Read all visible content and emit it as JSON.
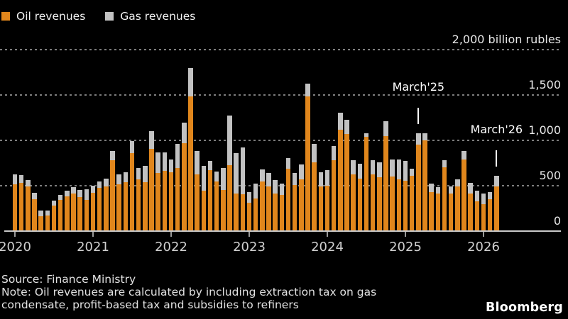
{
  "legend": {
    "items": [
      {
        "label": "Oil revenues",
        "color": "#E0861C"
      },
      {
        "label": "Gas revenues",
        "color": "#C2C2C2"
      }
    ]
  },
  "chart_data": {
    "type": "bar",
    "stacked": true,
    "title": "",
    "unit_top_label": "2,000 billion rubles",
    "x_start_month": "2020-01",
    "x_end_month": "2026-03",
    "ylim": [
      0,
      2000
    ],
    "yticks": [
      {
        "value": 0,
        "label": "0"
      },
      {
        "value": 500,
        "label": "500"
      },
      {
        "value": 1000,
        "label": "1,000"
      },
      {
        "value": 1500,
        "label": "1,500"
      },
      {
        "value": 2000,
        "label": "2,000 billion rubles"
      }
    ],
    "year_labels": [
      {
        "label": "2020",
        "month_index": 0
      },
      {
        "label": "2021",
        "month_index": 12
      },
      {
        "label": "2022",
        "month_index": 24
      },
      {
        "label": "2023",
        "month_index": 36
      },
      {
        "label": "2024",
        "month_index": 48
      },
      {
        "label": "2025",
        "month_index": 60
      },
      {
        "label": "2026",
        "month_index": 72
      }
    ],
    "series": [
      {
        "name": "Oil revenues",
        "color": "#E0861C",
        "values": [
          516,
          531,
          492,
          352,
          164,
          172,
          281,
          344,
          383,
          414,
          375,
          344,
          422,
          477,
          492,
          781,
          516,
          539,
          859,
          570,
          539,
          906,
          640,
          664,
          648,
          695,
          971,
          1484,
          625,
          443,
          672,
          547,
          451,
          729,
          417,
          404,
          313,
          359,
          547,
          492,
          414,
          398,
          688,
          508,
          570,
          1484,
          758,
          492,
          500,
          781,
          1117,
          1070,
          625,
          578,
          1040,
          625,
          594,
          1047,
          602,
          570,
          555,
          609,
          953,
          1000,
          430,
          414,
          703,
          414,
          492,
          789,
          414,
          330,
          297,
          352,
          492
        ]
      },
      {
        "name": "Gas revenues",
        "color": "#C2C2C2",
        "values": [
          109,
          86,
          70,
          70,
          62,
          55,
          55,
          55,
          62,
          70,
          78,
          117,
          78,
          70,
          86,
          102,
          109,
          109,
          133,
          125,
          180,
          195,
          227,
          203,
          141,
          266,
          227,
          313,
          260,
          276,
          104,
          112,
          242,
          547,
          443,
          521,
          117,
          164,
          133,
          148,
          148,
          125,
          117,
          133,
          164,
          141,
          203,
          156,
          172,
          156,
          188,
          156,
          156,
          164,
          40,
          156,
          164,
          164,
          187,
          219,
          219,
          78,
          125,
          78,
          94,
          70,
          78,
          78,
          78,
          94,
          117,
          115,
          117,
          78,
          117
        ]
      }
    ],
    "annotations": [
      {
        "label": "March'25",
        "month_index": 62
      },
      {
        "label": "March'26",
        "month_index": 74
      }
    ],
    "legend_position": "top-left",
    "grid": "dotted-horizontal"
  },
  "footer": {
    "source": "Source: Finance Ministry",
    "note_line1": "Note: Oil revenues are calculated by including extraction tax on gas",
    "note_line2": "condensate, profit-based tax and subsidies to refiners",
    "brand": "Bloomberg"
  }
}
